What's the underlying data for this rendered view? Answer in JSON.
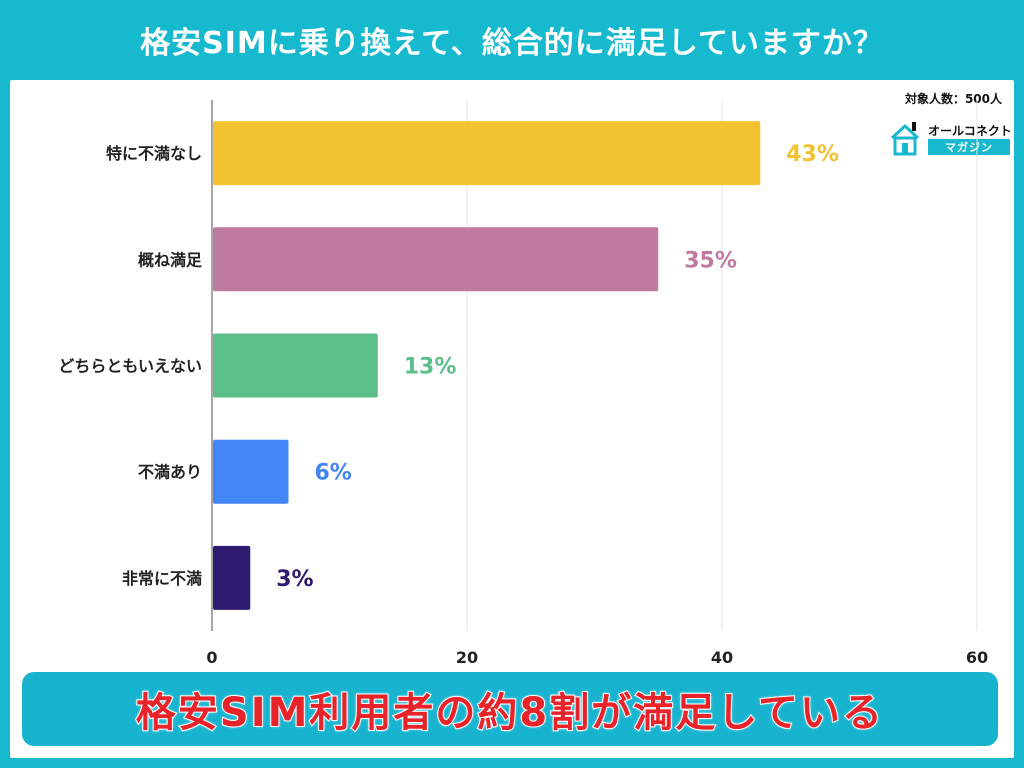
{
  "title": "格安SIMに乗り換えて、総合的に満足していますか？",
  "respondents": "対象人数：500人",
  "logo": {
    "name": "オールコネクト",
    "sub": "マガジン"
  },
  "banner": "格安SIM利用者の約8割が満足している",
  "chart_data": {
    "type": "bar",
    "orientation": "horizontal",
    "categories": [
      "特に不満なし",
      "概ね満足",
      "どちらともいえない",
      "不満あり",
      "非常に不満"
    ],
    "values": [
      43,
      35,
      13,
      6,
      3
    ],
    "value_labels": [
      "43%",
      "35%",
      "13%",
      "6%",
      "3%"
    ],
    "colors": [
      "#f2c230",
      "#c07aa0",
      "#5cbf8a",
      "#4285f4",
      "#2e1a6e"
    ],
    "xlim": [
      0,
      60
    ],
    "xticks": [
      0,
      20,
      40,
      60
    ],
    "grid": true
  }
}
